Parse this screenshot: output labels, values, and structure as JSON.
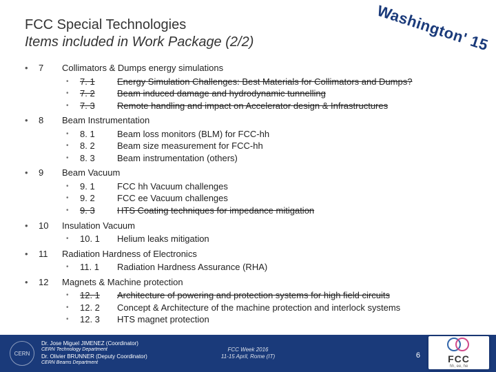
{
  "header": {
    "line1": "FCC Special Technologies",
    "line2": "Items included in Work Package (2/2)"
  },
  "stamp": "Washington' 15",
  "items": [
    {
      "num": "7",
      "label": "Collimators & Dumps energy simulations",
      "struck": false,
      "subs": [
        {
          "n": "7. 1",
          "t": "Energy Simulation Challenges:  Best Materials for Collimators and Dumps?",
          "struck": true
        },
        {
          "n": "7. 2",
          "t": "Beam induced damage and hydrodynamic tunnelling",
          "struck": true
        },
        {
          "n": "7. 3",
          "t": "Remote handling and impact on Accelerator design & Infrastructures",
          "struck": true
        }
      ]
    },
    {
      "num": "8",
      "label": "Beam Instrumentation",
      "struck": false,
      "subs": [
        {
          "n": "8. 1",
          "t": "Beam loss monitors (BLM) for FCC-hh",
          "struck": false
        },
        {
          "n": "8. 2",
          "t": "Beam size measurement for FCC-hh",
          "struck": false
        },
        {
          "n": "8. 3",
          "t": "Beam instrumentation (others)",
          "struck": false
        }
      ]
    },
    {
      "num": "9",
      "label": "Beam Vacuum",
      "struck": false,
      "subs": [
        {
          "n": "9. 1",
          "t": "FCC hh Vacuum challenges",
          "struck": false
        },
        {
          "n": "9. 2",
          "t": "FCC ee Vacuum challenges",
          "struck": false
        },
        {
          "n": "9. 3",
          "t": "HTS Coating techniques for impedance mitigation",
          "struck": true
        }
      ]
    },
    {
      "num": "10",
      "label": "Insulation Vacuum",
      "struck": false,
      "subs": [
        {
          "n": "10. 1",
          "t": "Helium leaks mitigation",
          "struck": false
        }
      ]
    },
    {
      "num": "11",
      "label": "Radiation Hardness of Electronics",
      "struck": false,
      "subs": [
        {
          "n": "11. 1",
          "t": "Radiation Hardness Assurance (RHA)",
          "struck": false
        }
      ]
    },
    {
      "num": "12",
      "label": "Magnets & Machine protection",
      "struck": false,
      "subs": [
        {
          "n": "12. 1",
          "t": "Architecture of powering and protection systems for high field circuits",
          "struck": true
        },
        {
          "n": "12. 2",
          "t": "Concept & Architecture of the machine protection and interlock systems",
          "struck": false
        },
        {
          "n": "12. 3",
          "t": "HTS magnet protection",
          "struck": false
        }
      ]
    }
  ],
  "footer": {
    "coord_name": "Dr. Jose Miguel JIMENEZ (Coordinator)",
    "coord_dept": "CERN Technology Department",
    "deputy_name": "Dr. Olivier BRUNNER (Deputy Coordinator)",
    "deputy_dept": "CERN Beams Department",
    "event": "FCC Week 2016",
    "event_dates": "11-15 April, Rome (IT)",
    "page": "6",
    "logo_text": "FCC",
    "logo_sub": "hh, ee, he"
  },
  "colors": {
    "header_text": "#333333",
    "stamp": "#1a3a7a",
    "footer_bg": "#1a3a7a",
    "ring_a": "#3366aa",
    "ring_b": "#d04a8a"
  }
}
